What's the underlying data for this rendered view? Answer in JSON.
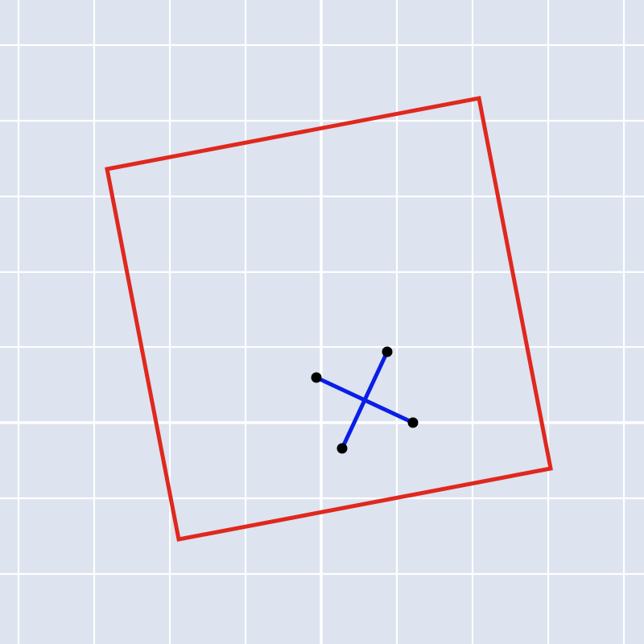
{
  "colors": {
    "background": "#dde3ef",
    "grid": "#ffffff",
    "square_outline": "#e0281e",
    "cross_segments": "#0a1ee6",
    "endpoints": "#000000"
  },
  "elements": {
    "grid": "square-grid",
    "square": "rotated-square-outline",
    "cross": "two-crossing-segments-with-endpoint-dots"
  }
}
